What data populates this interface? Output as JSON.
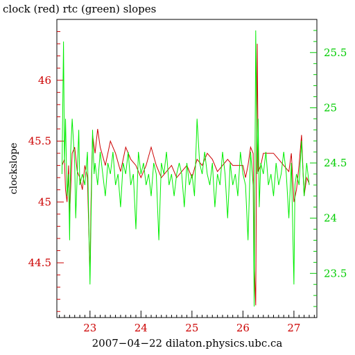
{
  "chart_data": {
    "type": "line",
    "title": "clock (red) rtc (green) slopes",
    "xlabel": "2007−04−22 dilaton.physics.ubc.ca",
    "ylabel": "clockslope",
    "xlim": [
      22.35,
      27.45
    ],
    "ylim_left": [
      44.05,
      46.5
    ],
    "ylim_right": [
      23.1,
      25.8
    ],
    "x_ticks": [
      23,
      24,
      25,
      26,
      27
    ],
    "x_tick_labels": [
      "23",
      "24",
      "25",
      "26",
      "27"
    ],
    "y_left_ticks": [
      44.5,
      45,
      45.5,
      46
    ],
    "y_left_tick_labels": [
      "44.5",
      "45",
      "45.5",
      "46"
    ],
    "y_right_ticks": [
      23.5,
      24,
      24.5,
      25,
      25.5
    ],
    "y_right_tick_labels": [
      "23.5",
      "24",
      "24.5",
      "25",
      "25.5"
    ],
    "grid": false,
    "colors": {
      "clock": "#cc0000",
      "rtc": "#00ee00",
      "frame": "#000000",
      "left_axis": "#cc0000",
      "right_axis": "#00cc00"
    },
    "series": [
      {
        "name": "clock",
        "axis": "left",
        "x": [
          22.45,
          22.5,
          22.52,
          22.55,
          22.58,
          22.6,
          22.65,
          22.7,
          22.75,
          22.8,
          22.85,
          22.9,
          22.95,
          23.0,
          23.02,
          23.05,
          23.1,
          23.15,
          23.2,
          23.3,
          23.4,
          23.5,
          23.6,
          23.7,
          23.8,
          23.9,
          24.0,
          24.1,
          24.2,
          24.3,
          24.4,
          24.5,
          24.6,
          24.7,
          24.8,
          24.9,
          25.0,
          25.1,
          25.2,
          25.3,
          25.4,
          25.5,
          25.6,
          25.7,
          25.8,
          25.9,
          26.0,
          26.05,
          26.1,
          26.15,
          26.2,
          26.22,
          26.25,
          26.28,
          26.3,
          26.35,
          26.4,
          26.5,
          26.6,
          26.7,
          26.8,
          26.9,
          26.95,
          27.0,
          27.05,
          27.1,
          27.15,
          27.2,
          27.25,
          27.3
        ],
        "y": [
          45.3,
          45.35,
          45.1,
          45.0,
          45.3,
          44.9,
          45.4,
          45.45,
          45.25,
          45.2,
          45.1,
          45.3,
          45.2,
          44.4,
          45.0,
          45.55,
          45.4,
          45.6,
          45.45,
          45.3,
          45.5,
          45.4,
          45.25,
          45.45,
          45.35,
          45.3,
          45.2,
          45.3,
          45.45,
          45.3,
          45.2,
          45.25,
          45.3,
          45.2,
          45.25,
          45.3,
          45.2,
          45.35,
          45.3,
          45.4,
          45.35,
          45.25,
          45.3,
          45.35,
          45.3,
          45.3,
          45.3,
          45.2,
          45.3,
          45.45,
          45.4,
          44.5,
          44.15,
          46.3,
          45.25,
          45.3,
          45.4,
          45.4,
          45.4,
          45.35,
          45.3,
          45.25,
          45.4,
          45.0,
          45.1,
          45.3,
          45.55,
          45.05,
          45.2,
          45.15
        ]
      },
      {
        "name": "rtc",
        "axis": "right",
        "x": [
          22.45,
          22.48,
          22.5,
          22.52,
          22.55,
          22.58,
          22.6,
          22.62,
          22.65,
          22.7,
          22.72,
          22.75,
          22.78,
          22.8,
          22.85,
          22.9,
          22.95,
          23.0,
          23.02,
          23.05,
          23.08,
          23.1,
          23.15,
          23.2,
          23.25,
          23.3,
          23.35,
          23.4,
          23.45,
          23.5,
          23.55,
          23.6,
          23.65,
          23.7,
          23.75,
          23.8,
          23.85,
          23.9,
          23.95,
          24.0,
          24.05,
          24.1,
          24.15,
          24.2,
          24.25,
          24.3,
          24.35,
          24.4,
          24.45,
          24.5,
          24.55,
          24.6,
          24.65,
          24.7,
          24.75,
          24.8,
          24.85,
          24.9,
          24.95,
          25.0,
          25.05,
          25.1,
          25.15,
          25.2,
          25.25,
          25.3,
          25.35,
          25.4,
          25.45,
          25.5,
          25.55,
          25.6,
          25.65,
          25.7,
          25.75,
          25.8,
          25.85,
          25.9,
          25.95,
          26.0,
          26.05,
          26.1,
          26.15,
          26.2,
          26.22,
          26.25,
          26.28,
          26.3,
          26.32,
          26.35,
          26.4,
          26.45,
          26.5,
          26.55,
          26.6,
          26.65,
          26.7,
          26.75,
          26.8,
          26.85,
          26.9,
          26.95,
          27.0,
          27.02,
          27.05,
          27.1,
          27.15,
          27.2,
          27.25,
          27.3
        ],
        "y": [
          24.4,
          25.6,
          24.5,
          24.9,
          24.2,
          24.4,
          23.8,
          24.6,
          24.9,
          24.5,
          24.0,
          24.4,
          24.8,
          24.3,
          24.4,
          24.3,
          24.6,
          23.4,
          24.0,
          24.8,
          24.4,
          24.5,
          24.3,
          24.6,
          24.4,
          24.2,
          24.5,
          24.4,
          24.6,
          24.3,
          24.4,
          24.1,
          24.5,
          24.4,
          24.6,
          24.3,
          24.4,
          23.9,
          24.6,
          24.4,
          24.5,
          24.3,
          24.4,
          24.2,
          24.5,
          24.4,
          23.8,
          24.5,
          24.4,
          24.6,
          24.3,
          24.4,
          24.2,
          24.4,
          24.5,
          24.4,
          24.1,
          24.5,
          24.3,
          24.4,
          24.2,
          24.9,
          24.5,
          24.4,
          24.6,
          24.4,
          24.3,
          24.5,
          24.1,
          24.4,
          24.3,
          24.6,
          24.4,
          24.0,
          24.5,
          24.3,
          24.4,
          24.2,
          24.6,
          24.4,
          24.3,
          23.8,
          24.6,
          24.3,
          23.2,
          25.7,
          24.4,
          24.9,
          24.1,
          24.5,
          24.4,
          24.6,
          24.3,
          24.4,
          24.2,
          24.5,
          24.3,
          24.4,
          24.6,
          24.4,
          24.0,
          24.5,
          23.4,
          24.3,
          24.4,
          24.3,
          24.7,
          24.2,
          24.5,
          24.3
        ]
      }
    ]
  }
}
